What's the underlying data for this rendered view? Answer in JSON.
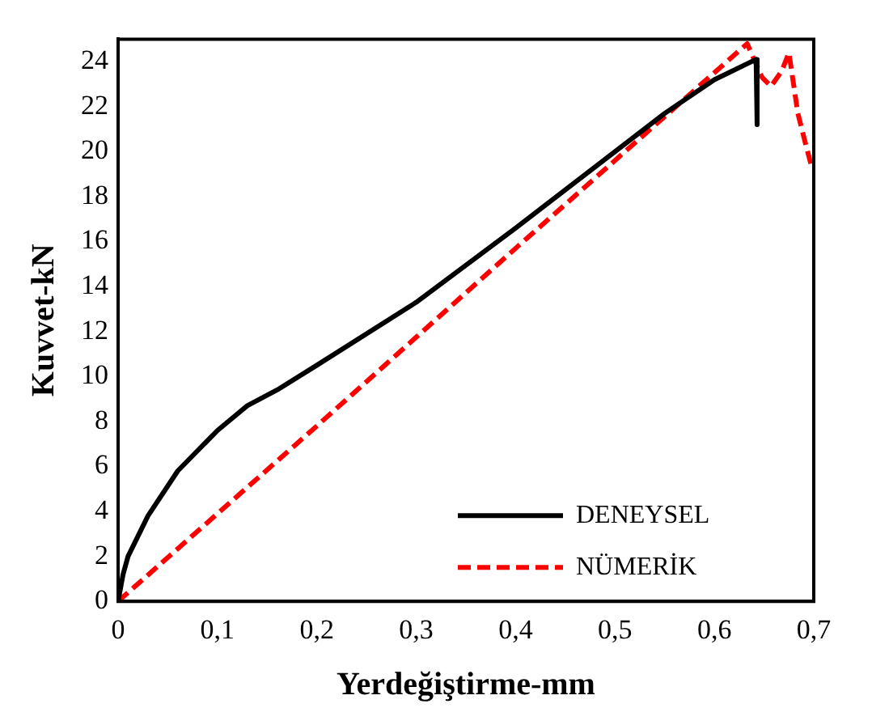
{
  "chart_data": {
    "type": "line",
    "xlabel": "Yerdeğiştirme-mm",
    "ylabel": "Kuvvet-kN",
    "xlim": [
      0,
      0.7
    ],
    "xticks": [
      {
        "value": 0,
        "label": "0"
      },
      {
        "value": 0.1,
        "label": "0,1"
      },
      {
        "value": 0.2,
        "label": "0,2"
      },
      {
        "value": 0.3,
        "label": "0,3"
      },
      {
        "value": 0.4,
        "label": "0,4"
      },
      {
        "value": 0.5,
        "label": "0,5"
      },
      {
        "value": 0.6,
        "label": "0,6"
      },
      {
        "value": 0.7,
        "label": "0,7"
      }
    ],
    "ylim": [
      0,
      25
    ],
    "yticks": [
      0,
      2,
      4,
      6,
      8,
      10,
      12,
      14,
      16,
      18,
      20,
      22,
      24
    ],
    "grid": false,
    "legend": "bottom right",
    "marker": "none",
    "series": [
      {
        "name": "DENEYSEL",
        "color": "#000000",
        "line_style": "solid",
        "x": [
          0,
          0.005,
          0.01,
          0.03,
          0.06,
          0.1,
          0.13,
          0.16,
          0.2,
          0.3,
          0.4,
          0.5,
          0.55,
          0.6,
          0.642,
          0.643
        ],
        "values": [
          0,
          1.2,
          2,
          3.8,
          5.8,
          7.6,
          8.7,
          9.4,
          10.5,
          13.3,
          16.6,
          20.0,
          21.7,
          23.2,
          24.1,
          21.2
        ]
      },
      {
        "name": "NÜMERİK",
        "color": "#ff0000",
        "line_style": "dashed",
        "x": [
          0,
          0.2,
          0.4,
          0.633,
          0.648,
          0.657,
          0.668,
          0.675,
          0.684,
          0.692,
          0.698
        ],
        "values": [
          0,
          7.8,
          15.7,
          24.8,
          23.3,
          22.9,
          23.6,
          24.4,
          21.7,
          20.3,
          19.3
        ]
      }
    ]
  }
}
